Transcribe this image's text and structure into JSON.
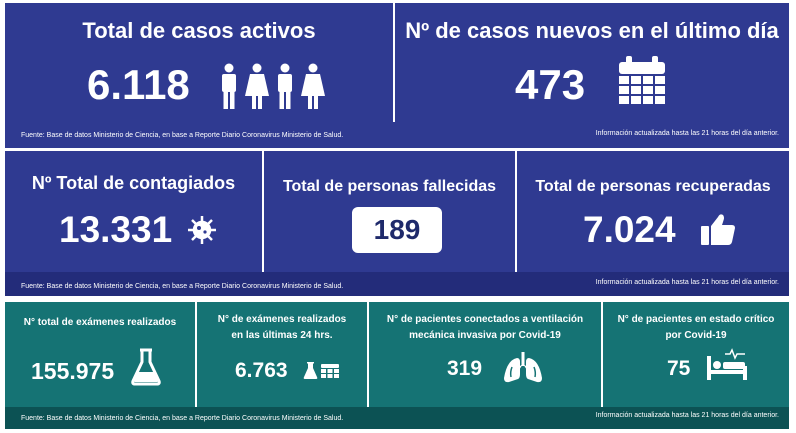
{
  "row1": {
    "active": {
      "title": "Total de casos activos",
      "value": "6.118",
      "icon": "people-icon"
    },
    "new_cases": {
      "title": "Nº de casos nuevos en el último día",
      "value": "473",
      "icon": "calendar-icon"
    },
    "source": "Fuente: Base de datos Ministerio de Ciencia, en base a Reporte Diario Coronavirus Ministerio de Salud.",
    "updated": "Información actualizada hasta las 21 horas  del día anterior."
  },
  "row2": {
    "total_infected": {
      "title": "Nº Total de contagiados",
      "value": "13.331",
      "icon": "virus-icon"
    },
    "deaths": {
      "title": "Total de personas fallecidas",
      "value": "189"
    },
    "recovered": {
      "title": "Total de personas recuperadas",
      "value": "7.024",
      "icon": "thumbs-up-icon"
    },
    "source": "Fuente: Base de datos Ministerio de Ciencia, en base a Reporte Diario Coronavirus Ministerio de Salud.",
    "updated": "Información actualizada hasta las 21 horas  del día anterior."
  },
  "row3": {
    "exams_total": {
      "title": "N° total de exámenes realizados",
      "value": "155.975",
      "icon": "flask-icon"
    },
    "exams_24h": {
      "title_line1": "N° de exámenes realizados",
      "title_line2": "en las últimas 24 hrs.",
      "value": "6.763",
      "icon": "flask-calendar-icon"
    },
    "ventilation": {
      "title_line1": "N° de pacientes conectados a ventilación",
      "title_line2": "mecánica invasiva por Covid-19",
      "value": "319",
      "icon": "lungs-icon"
    },
    "critical": {
      "title_line1": "N° de pacientes en estado crítico",
      "title_line2": "por Covid-19",
      "value": "75",
      "icon": "hospital-bed-icon"
    },
    "source": "Fuente: Base de datos Ministerio de Ciencia, en base a Reporte Diario Coronavirus Ministerio de Salud.",
    "updated": "Información actualizada hasta las 21 horas  del día anterior."
  }
}
